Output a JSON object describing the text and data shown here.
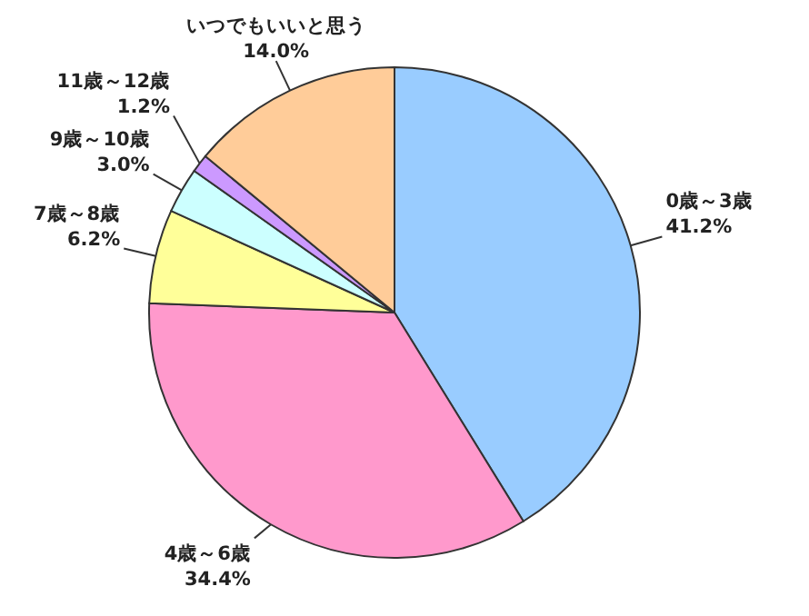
{
  "chart_data": {
    "type": "pie",
    "categories": [
      "0歳～3歳",
      "4歳～6歳",
      "7歳～8歳",
      "9歳～10歳",
      "11歳～12歳",
      "いつでもいいと思う"
    ],
    "values": [
      41.2,
      34.4,
      6.2,
      3.0,
      1.2,
      14.0
    ],
    "colors": [
      "#99ccff",
      "#ff99cc",
      "#ffff99",
      "#ccffff",
      "#cc99ff",
      "#ffcc99"
    ],
    "value_labels": [
      "41.2%",
      "34.4%",
      "6.2%",
      "3.0%",
      "1.2%",
      "14.0%"
    ]
  }
}
